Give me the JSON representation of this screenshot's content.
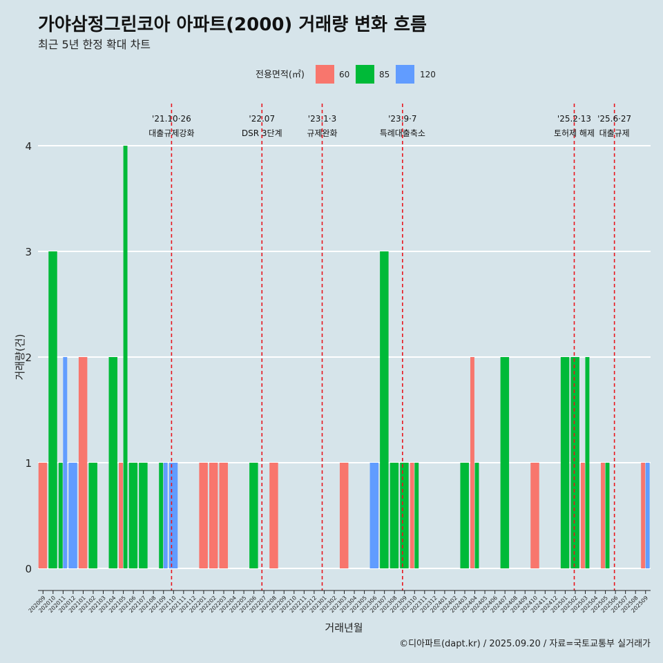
{
  "chart_data": {
    "type": "bar",
    "title": "가야삼정그린코아 아파트(2000) 거래량 변화 흐름",
    "subtitle": "최근 5년 한정 확대 차트",
    "xlabel": "거래년월",
    "ylabel": "거래량(건)",
    "ylim": [
      0,
      4
    ],
    "yticks": [
      "0",
      "1",
      "2",
      "3",
      "4"
    ],
    "legend": {
      "title": "전용면적(㎡)",
      "position": "top",
      "entries": [
        {
          "name": "60",
          "color": "#F8766D"
        },
        {
          "name": "85",
          "color": "#00BA38"
        },
        {
          "name": "120",
          "color": "#619CFF"
        }
      ]
    },
    "categories": [
      "202009",
      "202010",
      "202011",
      "202012",
      "202101",
      "202102",
      "202103",
      "202104",
      "202105",
      "202106",
      "202107",
      "202108",
      "202109",
      "202110",
      "202111",
      "202112",
      "202201",
      "202202",
      "202203",
      "202204",
      "202205",
      "202206",
      "202207",
      "202208",
      "202209",
      "202210",
      "202211",
      "202212",
      "202301",
      "202302",
      "202303",
      "202304",
      "202305",
      "202306",
      "202307",
      "202308",
      "202309",
      "202310",
      "202311",
      "202312",
      "202401",
      "202402",
      "202403",
      "202404",
      "202405",
      "202406",
      "202407",
      "202408",
      "202409",
      "202410",
      "202411",
      "202412",
      "202501",
      "202502",
      "202503",
      "202504",
      "202505",
      "202506",
      "202507",
      "202508",
      "202509"
    ],
    "bars": [
      {
        "month": "202009",
        "size": "60",
        "value": 1
      },
      {
        "month": "202010",
        "size": "85",
        "value": 3
      },
      {
        "month": "202011",
        "size": "85",
        "value": 1
      },
      {
        "month": "202011",
        "size": "120",
        "value": 2
      },
      {
        "month": "202012",
        "size": "120",
        "value": 1
      },
      {
        "month": "202101",
        "size": "60",
        "value": 2
      },
      {
        "month": "202102",
        "size": "85",
        "value": 1
      },
      {
        "month": "202104",
        "size": "85",
        "value": 2
      },
      {
        "month": "202105",
        "size": "60",
        "value": 1
      },
      {
        "month": "202105",
        "size": "85",
        "value": 4
      },
      {
        "month": "202106",
        "size": "85",
        "value": 1
      },
      {
        "month": "202107",
        "size": "85",
        "value": 1
      },
      {
        "month": "202109",
        "size": "85",
        "value": 1
      },
      {
        "month": "202109",
        "size": "120",
        "value": 1
      },
      {
        "month": "202110",
        "size": "120",
        "value": 1
      },
      {
        "month": "202201",
        "size": "60",
        "value": 1
      },
      {
        "month": "202202",
        "size": "60",
        "value": 1
      },
      {
        "month": "202203",
        "size": "60",
        "value": 1
      },
      {
        "month": "202206",
        "size": "85",
        "value": 1
      },
      {
        "month": "202208",
        "size": "60",
        "value": 1
      },
      {
        "month": "202303",
        "size": "60",
        "value": 1
      },
      {
        "month": "202306",
        "size": "120",
        "value": 1
      },
      {
        "month": "202307",
        "size": "85",
        "value": 3
      },
      {
        "month": "202308",
        "size": "85",
        "value": 1
      },
      {
        "month": "202309",
        "size": "85",
        "value": 1
      },
      {
        "month": "202310",
        "size": "60",
        "value": 1
      },
      {
        "month": "202310",
        "size": "85",
        "value": 1
      },
      {
        "month": "202403",
        "size": "85",
        "value": 1
      },
      {
        "month": "202404",
        "size": "60",
        "value": 2
      },
      {
        "month": "202404",
        "size": "85",
        "value": 1
      },
      {
        "month": "202407",
        "size": "85",
        "value": 2
      },
      {
        "month": "202410",
        "size": "60",
        "value": 1
      },
      {
        "month": "202501",
        "size": "85",
        "value": 2
      },
      {
        "month": "202502",
        "size": "85",
        "value": 2
      },
      {
        "month": "202503",
        "size": "60",
        "value": 1
      },
      {
        "month": "202503",
        "size": "85",
        "value": 2
      },
      {
        "month": "202505",
        "size": "60",
        "value": 1
      },
      {
        "month": "202505",
        "size": "85",
        "value": 1
      },
      {
        "month": "202509",
        "size": "60",
        "value": 1
      },
      {
        "month": "202509",
        "size": "120",
        "value": 1
      }
    ],
    "events": [
      {
        "date": "'21.10·26",
        "label": "대출규제강화",
        "position_month": 13.3
      },
      {
        "date": "'22.07",
        "label": "DSR 3단계",
        "position_month": 22.3
      },
      {
        "date": "'23.1·3",
        "label": "규제완화",
        "position_month": 28.3
      },
      {
        "date": "'23.9·7",
        "label": "특례대출축소",
        "position_month": 36.3
      },
      {
        "date": "'25.2·13",
        "label": "토허제 해제",
        "position_month": 53.4
      },
      {
        "date": "'25.6·27",
        "label": "대출규제",
        "position_month": 57.4
      }
    ],
    "caption": "©디아파트(dapt.kr) / 2025.09.20 / 자료=국토교통부 실거래가"
  }
}
